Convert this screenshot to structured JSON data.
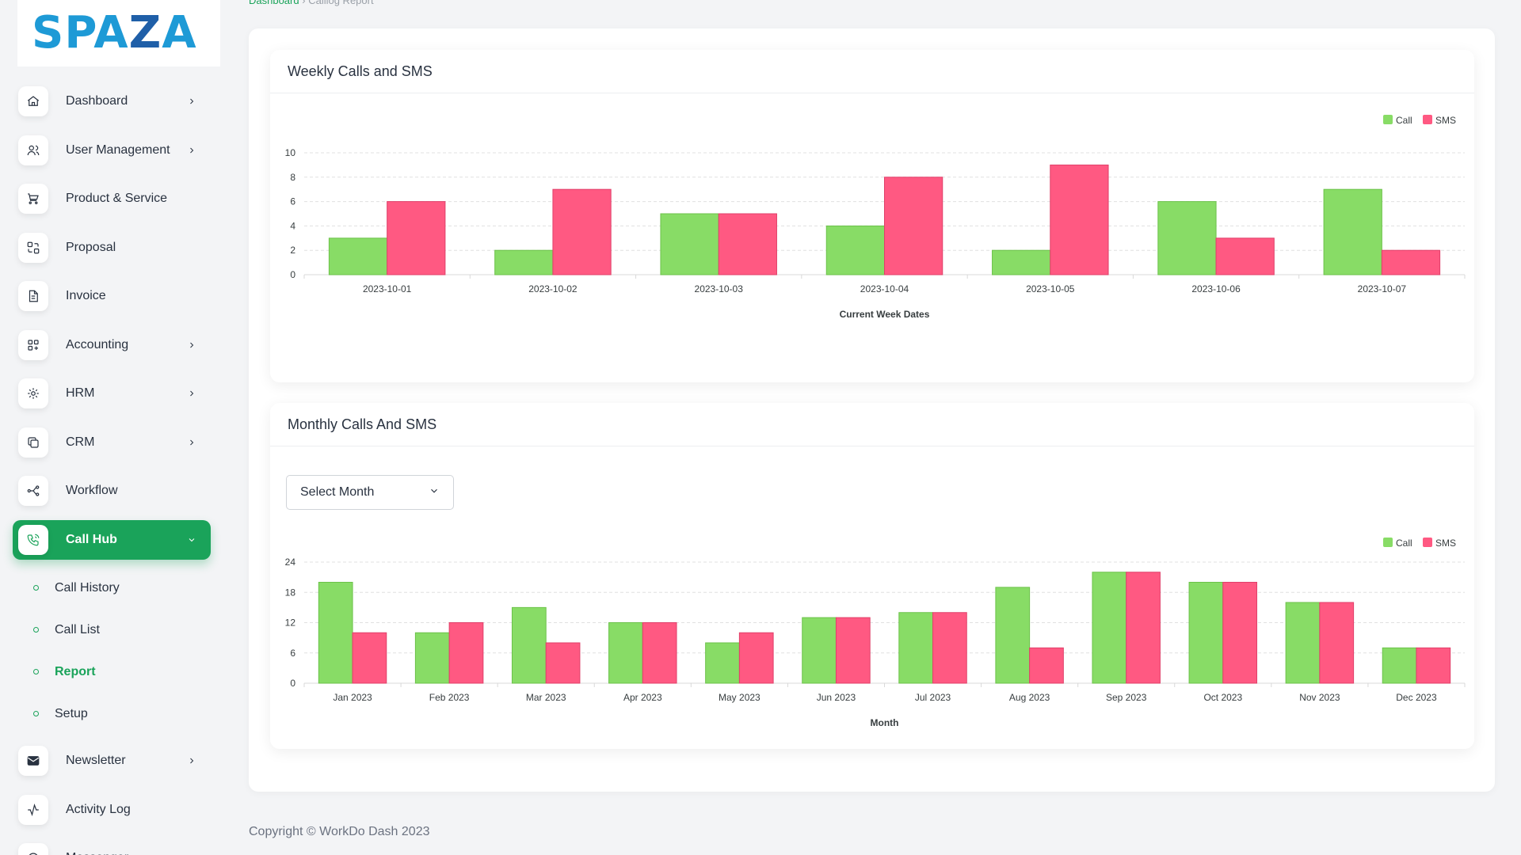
{
  "logo": {
    "part1": "SPA",
    "part2": "Z",
    "part3": "A"
  },
  "breadcrumb": {
    "first": "Dashboard",
    "separator": "›",
    "second": "Calllog Report"
  },
  "sidebar": {
    "items": [
      {
        "label": "Dashboard",
        "icon": "home-icon",
        "arrow": true
      },
      {
        "label": "User Management",
        "icon": "users-icon",
        "arrow": true
      },
      {
        "label": "Product & Service",
        "icon": "cart-icon",
        "arrow": false
      },
      {
        "label": "Proposal",
        "icon": "proposal-icon",
        "arrow": false
      },
      {
        "label": "Invoice",
        "icon": "file-invoice-icon",
        "arrow": false
      },
      {
        "label": "Accounting",
        "icon": "layout-grid-add-icon",
        "arrow": true
      },
      {
        "label": "HRM",
        "icon": "settings-icon",
        "arrow": true
      },
      {
        "label": "CRM",
        "icon": "layers-icon",
        "arrow": true
      },
      {
        "label": "Workflow",
        "icon": "workflow-icon",
        "arrow": false
      },
      {
        "label": "Call Hub",
        "icon": "phone-icon",
        "arrow": true,
        "active": true
      },
      {
        "label": "Newsletter",
        "icon": "mail-icon",
        "arrow": true
      },
      {
        "label": "Activity Log",
        "icon": "activity-icon",
        "arrow": false
      },
      {
        "label": "Messenger",
        "icon": "message-icon",
        "arrow": false
      }
    ],
    "subitems": [
      {
        "label": "Call History"
      },
      {
        "label": "Call List"
      },
      {
        "label": "Report",
        "active": true
      },
      {
        "label": "Setup"
      }
    ]
  },
  "weekly": {
    "title": "Weekly Calls and SMS"
  },
  "monthly": {
    "title": "Monthly Calls And SMS",
    "select_value": "Select Month"
  },
  "colors": {
    "call": "#88dc66",
    "sms": "#ff5982",
    "accent": "#1aa35a"
  },
  "chart_data": [
    {
      "type": "bar",
      "title": "Weekly Calls and SMS",
      "categories": [
        "2023-10-01",
        "2023-10-02",
        "2023-10-03",
        "2023-10-04",
        "2023-10-05",
        "2023-10-06",
        "2023-10-07"
      ],
      "series": [
        {
          "name": "Call",
          "values": [
            3,
            2,
            5,
            4,
            2,
            6,
            7
          ]
        },
        {
          "name": "SMS",
          "values": [
            6,
            7,
            5,
            8,
            9,
            3,
            2
          ]
        }
      ],
      "xlabel": "Current Week Dates",
      "ylabel": "",
      "ylim": [
        0,
        10
      ],
      "yticks": [
        0,
        2,
        4,
        6,
        8,
        10
      ],
      "grid": true,
      "legend": "top-right"
    },
    {
      "type": "bar",
      "title": "Monthly Calls And SMS",
      "categories": [
        "Jan 2023",
        "Feb 2023",
        "Mar 2023",
        "Apr 2023",
        "May 2023",
        "Jun 2023",
        "Jul 2023",
        "Aug 2023",
        "Sep 2023",
        "Oct 2023",
        "Nov 2023",
        "Dec 2023"
      ],
      "series": [
        {
          "name": "Call",
          "values": [
            20,
            10,
            15,
            12,
            8,
            13,
            14,
            19,
            22,
            20,
            16,
            7
          ]
        },
        {
          "name": "SMS",
          "values": [
            10,
            12,
            8,
            12,
            10,
            13,
            14,
            7,
            22,
            20,
            16,
            7
          ]
        }
      ],
      "xlabel": "Month",
      "ylabel": "",
      "ylim": [
        0,
        24
      ],
      "yticks": [
        0,
        6,
        12,
        18,
        24
      ],
      "grid": true,
      "legend": "top-right"
    }
  ],
  "footer": {
    "copyright": "Copyright © WorkDo Dash 2023"
  }
}
